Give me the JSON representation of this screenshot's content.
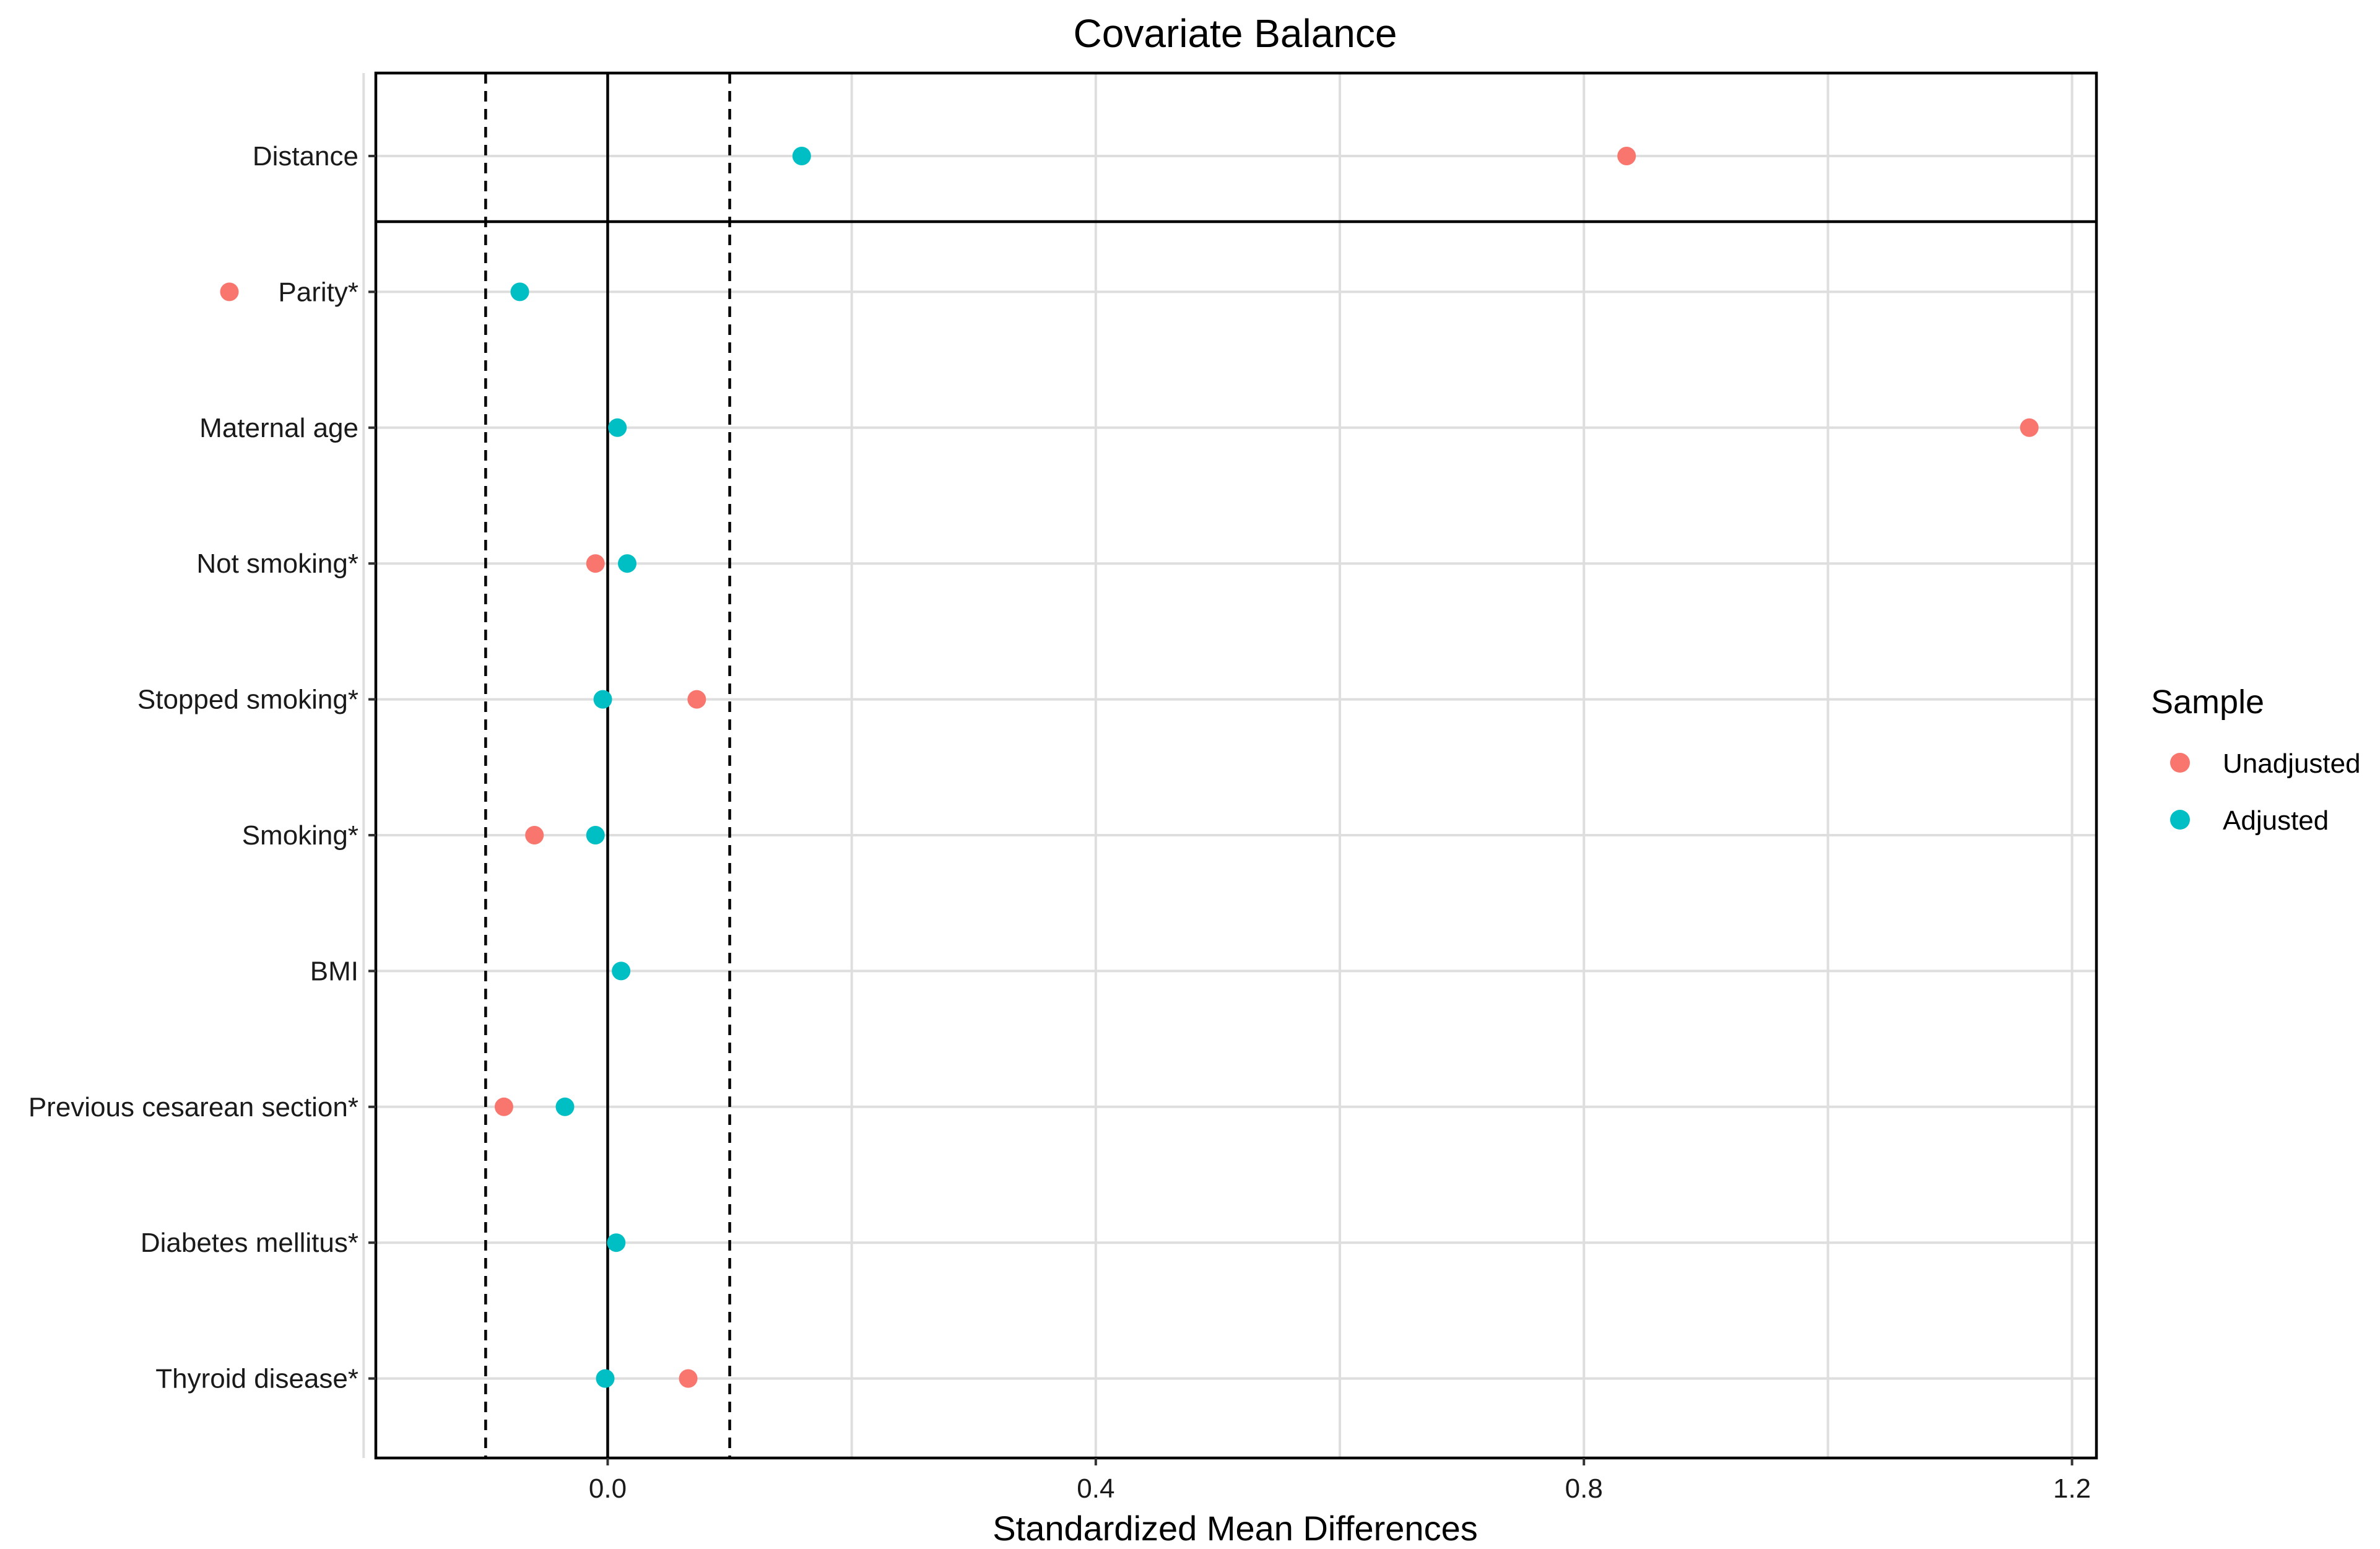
{
  "chart_data": {
    "type": "scatter",
    "title": "Covariate Balance",
    "xlabel": "Standardized Mean Differences",
    "ylabel": "",
    "xlim": [
      -0.19,
      1.22
    ],
    "x_ticks": [
      {
        "value": 0.0,
        "label": "0.0"
      },
      {
        "value": 0.4,
        "label": "0.4"
      },
      {
        "value": 0.8,
        "label": "0.8"
      },
      {
        "value": 1.2,
        "label": "1.2"
      }
    ],
    "minor_gridlines": [
      -0.2,
      0.2,
      0.6,
      1.0
    ],
    "threshold_lines": [
      -0.1,
      0.1
    ],
    "zero_line": 0,
    "grid": true,
    "legend_title": "Sample",
    "legend_position": "right",
    "categories": [
      "Distance",
      "Parity*",
      "Maternal age",
      "Not smoking*",
      "Stopped smoking*",
      "Smoking*",
      "BMI",
      "Previous cesarean section*",
      "Diabetes mellitus*",
      "Thyroid disease*"
    ],
    "series": [
      {
        "name": "Unadjusted",
        "color": "#F8766D",
        "values": [
          0.835,
          -0.31,
          1.165,
          -0.01,
          0.073,
          -0.06,
          null,
          -0.085,
          null,
          0.066
        ]
      },
      {
        "name": "Adjusted",
        "color": "#00BFC4",
        "values": [
          0.159,
          -0.072,
          0.008,
          0.016,
          -0.004,
          -0.01,
          0.011,
          -0.035,
          0.007,
          -0.002
        ]
      }
    ]
  }
}
